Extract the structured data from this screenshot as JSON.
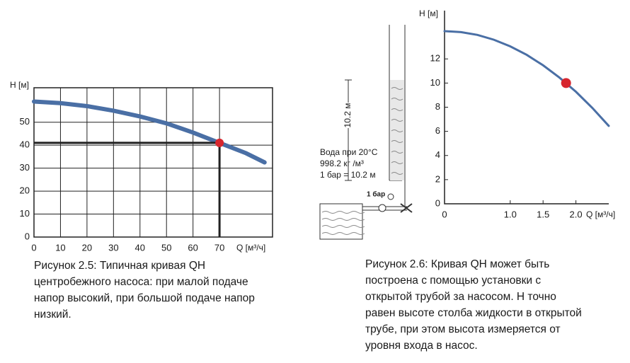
{
  "chart_data": [
    {
      "type": "line",
      "ylabel": "H [м]",
      "xlabel": "Q [м³/ч]",
      "x": [
        0,
        10,
        20,
        30,
        40,
        50,
        60,
        70,
        80,
        87
      ],
      "values": [
        59,
        58.3,
        57,
        55,
        52.5,
        49.5,
        45.5,
        41,
        36.5,
        32.5
      ],
      "color": "#4a6fa5",
      "xlim": [
        0,
        90
      ],
      "ylim": [
        0,
        65
      ],
      "xticks": [
        0,
        10,
        20,
        30,
        40,
        50,
        60,
        70
      ],
      "yticks": [
        0,
        10,
        20,
        30,
        40,
        50
      ],
      "grid": true,
      "marker": {
        "x": 70,
        "y": 41,
        "color": "#d7262e"
      },
      "drop_lines": true
    },
    {
      "type": "line",
      "ylabel": "H [м]",
      "xlabel": "Q [м³/ч]",
      "x": [
        0,
        0.25,
        0.5,
        0.75,
        1,
        1.25,
        1.5,
        1.75,
        2,
        2.25,
        2.5
      ],
      "values": [
        14.3,
        14.22,
        13.99,
        13.59,
        13.04,
        12.34,
        11.47,
        10.45,
        9.28,
        7.94,
        6.45
      ],
      "color": "#4a6fa5",
      "xlim": [
        0,
        2.5
      ],
      "ylim": [
        0,
        16
      ],
      "xticks": [
        0,
        {
          "value": 1,
          "label": "1.0"
        },
        1.5,
        {
          "value": 2,
          "label": "2.0"
        }
      ],
      "yticks": [
        0,
        2,
        4,
        6,
        8,
        10,
        12
      ],
      "grid": false,
      "marker": {
        "x": 1.85,
        "y": 10,
        "color": "#d7262e"
      },
      "drop_lines": false
    }
  ],
  "diagram": {
    "height_label": "10.2 м",
    "water": "Вода при 20°C",
    "density": "998.2 кг /м³",
    "conversion": "1 бар = 10.2 м",
    "gauge": "1 бар"
  },
  "captions": [
    [
      "Рисунок 2.5: Типичная кривая QH",
      "центробежного насоса: при малой подаче",
      "напор высокий, при большой подаче напор",
      "низкий."
    ],
    [
      "Рисунок 2.6: Кривая QH может быть",
      "построена с помощью установки с",
      "открытой трубой за насосом. Н точно",
      "равен высоте столба жидкости в открытой",
      "трубе, при этом высота измеряется от",
      "уровня входа в насос."
    ]
  ]
}
